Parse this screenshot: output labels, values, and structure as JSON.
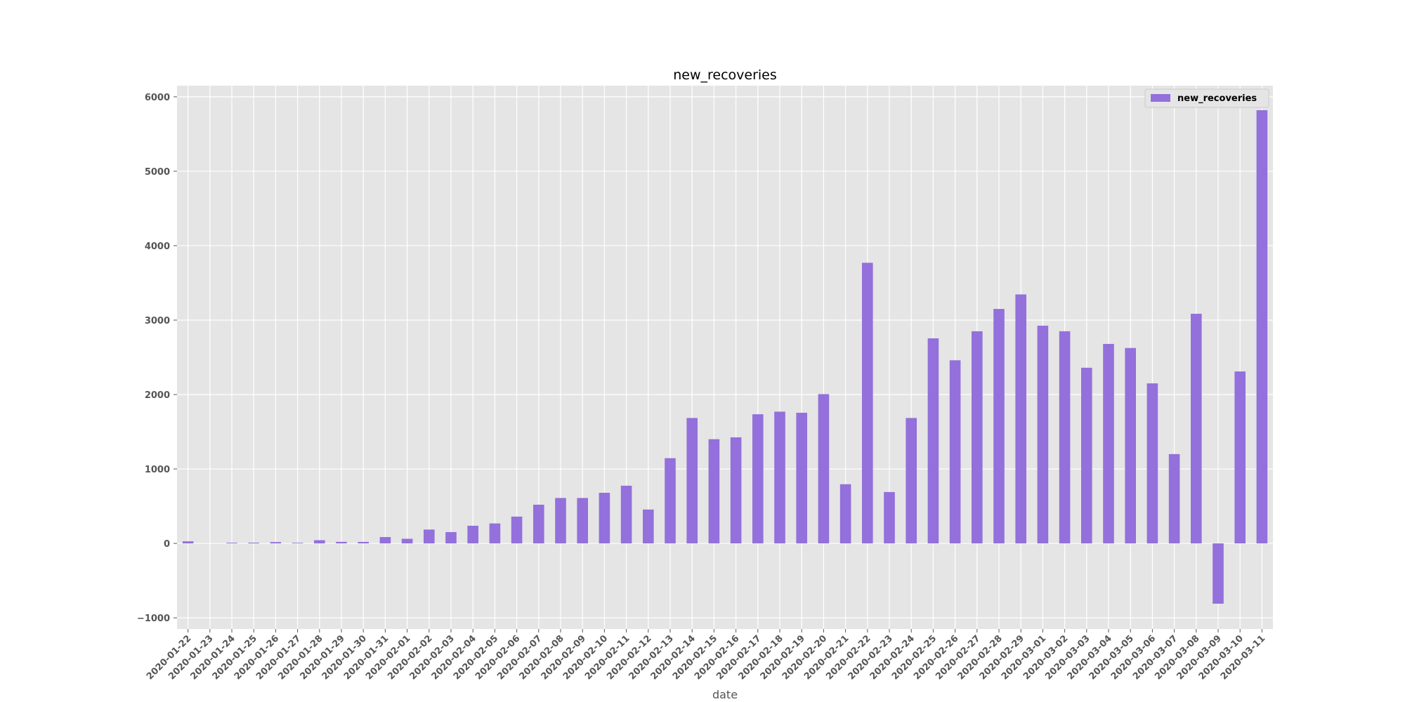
{
  "chart_data": {
    "type": "bar",
    "title": "new_recoveries",
    "xlabel": "date",
    "ylabel": "",
    "ylim": [
      -1150,
      6150
    ],
    "yticks": [
      -1000,
      0,
      1000,
      2000,
      3000,
      4000,
      5000,
      6000
    ],
    "ytick_labels": [
      "−1000",
      "0",
      "1000",
      "2000",
      "3000",
      "4000",
      "5000",
      "6000"
    ],
    "grid": true,
    "legend": {
      "position": "top-right",
      "entries": [
        "new_recoveries"
      ]
    },
    "colors": {
      "bar": "#9370DB",
      "plot_background": "#E5E5E5",
      "grid": "#FFFFFF"
    },
    "categories": [
      "2020-01-22",
      "2020-01-23",
      "2020-01-24",
      "2020-01-25",
      "2020-01-26",
      "2020-01-27",
      "2020-01-28",
      "2020-01-29",
      "2020-01-30",
      "2020-01-31",
      "2020-02-01",
      "2020-02-02",
      "2020-02-03",
      "2020-02-04",
      "2020-02-05",
      "2020-02-06",
      "2020-02-07",
      "2020-02-08",
      "2020-02-09",
      "2020-02-10",
      "2020-02-11",
      "2020-02-12",
      "2020-02-13",
      "2020-02-14",
      "2020-02-15",
      "2020-02-16",
      "2020-02-17",
      "2020-02-18",
      "2020-02-19",
      "2020-02-20",
      "2020-02-21",
      "2020-02-22",
      "2020-02-23",
      "2020-02-24",
      "2020-02-25",
      "2020-02-26",
      "2020-02-27",
      "2020-02-28",
      "2020-02-29",
      "2020-03-01",
      "2020-03-02",
      "2020-03-03",
      "2020-03-04",
      "2020-03-05",
      "2020-03-06",
      "2020-03-07",
      "2020-03-08",
      "2020-03-09",
      "2020-03-10",
      "2020-03-11"
    ],
    "series": [
      {
        "name": "new_recoveries",
        "values": [
          28,
          0,
          9,
          10,
          18,
          8,
          43,
          21,
          20,
          85,
          62,
          186,
          152,
          237,
          268,
          360,
          520,
          610,
          610,
          680,
          775,
          455,
          1145,
          1685,
          1400,
          1425,
          1735,
          1770,
          1755,
          2005,
          795,
          3770,
          690,
          1685,
          2755,
          2460,
          2850,
          3150,
          3345,
          2925,
          2850,
          2360,
          2680,
          2625,
          2150,
          1200,
          3085,
          -810,
          2310,
          5820
        ]
      }
    ]
  }
}
